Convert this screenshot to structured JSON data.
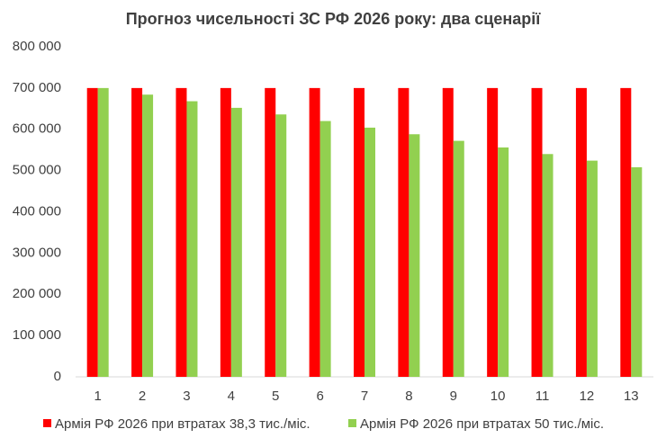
{
  "chart_data": {
    "type": "bar",
    "title": "Прогноз чисельності ЗС РФ 2026 року: два сценарії",
    "categories": [
      1,
      2,
      3,
      4,
      5,
      6,
      7,
      8,
      9,
      10,
      11,
      12,
      13
    ],
    "series": [
      {
        "name": "Армія РФ 2026 при втратах 38,3 тис./міс.",
        "color": "#ff0000",
        "values": [
          700000,
          700000,
          700000,
          700000,
          700000,
          700000,
          700000,
          700000,
          700000,
          700000,
          700000,
          700000,
          700000
        ]
      },
      {
        "name": "Армія РФ 2026 при втратах 50 тис./міс.",
        "color": "#92d050",
        "values": [
          700000,
          684000,
          668000,
          652000,
          636000,
          620000,
          604000,
          588000,
          572000,
          556000,
          540000,
          524000,
          508000
        ]
      }
    ],
    "ylim": [
      0,
      800000
    ],
    "yticks": [
      {
        "value": 0,
        "label": "0"
      },
      {
        "value": 100000,
        "label": "100 000"
      },
      {
        "value": 200000,
        "label": "200 000"
      },
      {
        "value": 300000,
        "label": "300 000"
      },
      {
        "value": 400000,
        "label": "400 000"
      },
      {
        "value": 500000,
        "label": "500 000"
      },
      {
        "value": 600000,
        "label": "600 000"
      },
      {
        "value": 700000,
        "label": "700 000"
      },
      {
        "value": 800000,
        "label": "800 000"
      }
    ],
    "legend": "bottom"
  }
}
